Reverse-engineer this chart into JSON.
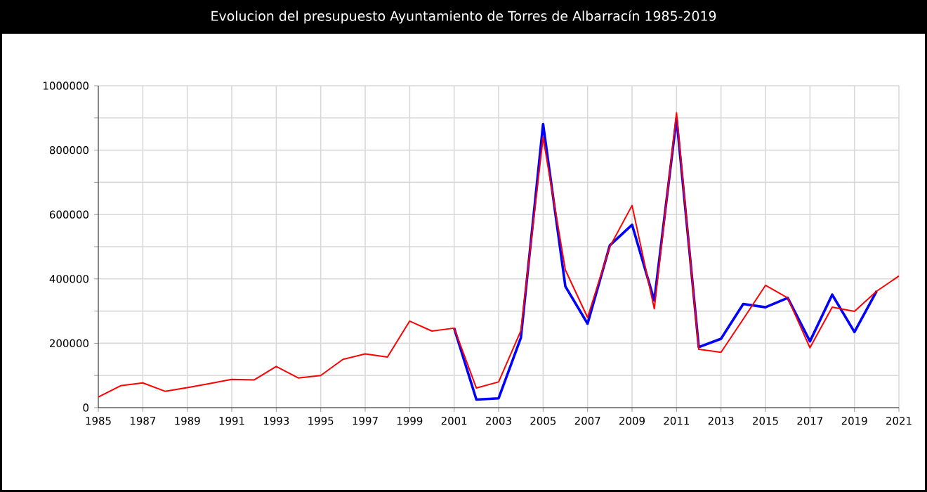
{
  "chart_data": {
    "type": "line",
    "title": "Evolucion del presupuesto Ayuntamiento de Torres de Albarracín 1985-2019",
    "x": [
      1985,
      1986,
      1987,
      1988,
      1989,
      1990,
      1991,
      1992,
      1993,
      1994,
      1995,
      1996,
      1997,
      1998,
      1999,
      2000,
      2001,
      2002,
      2003,
      2004,
      2005,
      2006,
      2007,
      2008,
      2009,
      2010,
      2011,
      2012,
      2013,
      2014,
      2015,
      2016,
      2017,
      2018,
      2019,
      2020,
      2021
    ],
    "series": [
      {
        "color": "#0000ff",
        "values": [
          null,
          null,
          null,
          null,
          null,
          null,
          null,
          null,
          null,
          null,
          null,
          null,
          null,
          null,
          null,
          null,
          247000,
          25000,
          29000,
          217000,
          881000,
          377000,
          261000,
          504000,
          568000,
          333000,
          899000,
          188000,
          214000,
          322000,
          312000,
          341000,
          206000,
          351000,
          235000,
          362000,
          null
        ]
      },
      {
        "color": "#ff0000",
        "values": [
          33000,
          68000,
          77000,
          51000,
          62000,
          75000,
          88000,
          86000,
          128000,
          92000,
          100000,
          150000,
          167000,
          157000,
          269000,
          238000,
          247000,
          61000,
          80000,
          239000,
          840000,
          428000,
          280000,
          500000,
          628000,
          307000,
          916000,
          181000,
          172000,
          275000,
          380000,
          341000,
          186000,
          312000,
          299000,
          362000,
          409000
        ]
      }
    ],
    "xlim": [
      1985,
      2021
    ],
    "ylim": [
      0,
      1000000
    ],
    "xticks": [
      1985,
      1987,
      1989,
      1991,
      1993,
      1995,
      1997,
      1999,
      2001,
      2003,
      2005,
      2007,
      2009,
      2011,
      2013,
      2015,
      2017,
      2019,
      2021
    ],
    "yticks": [
      0,
      {
        "value": 100000,
        "label": null
      },
      200000,
      {
        "value": 300000,
        "label": null
      },
      400000,
      {
        "value": 500000,
        "label": null
      },
      600000,
      {
        "value": 700000,
        "label": null
      },
      800000,
      {
        "value": 900000,
        "label": null
      },
      1000000
    ],
    "grid": true,
    "marker": "none",
    "line_style": "solid"
  }
}
